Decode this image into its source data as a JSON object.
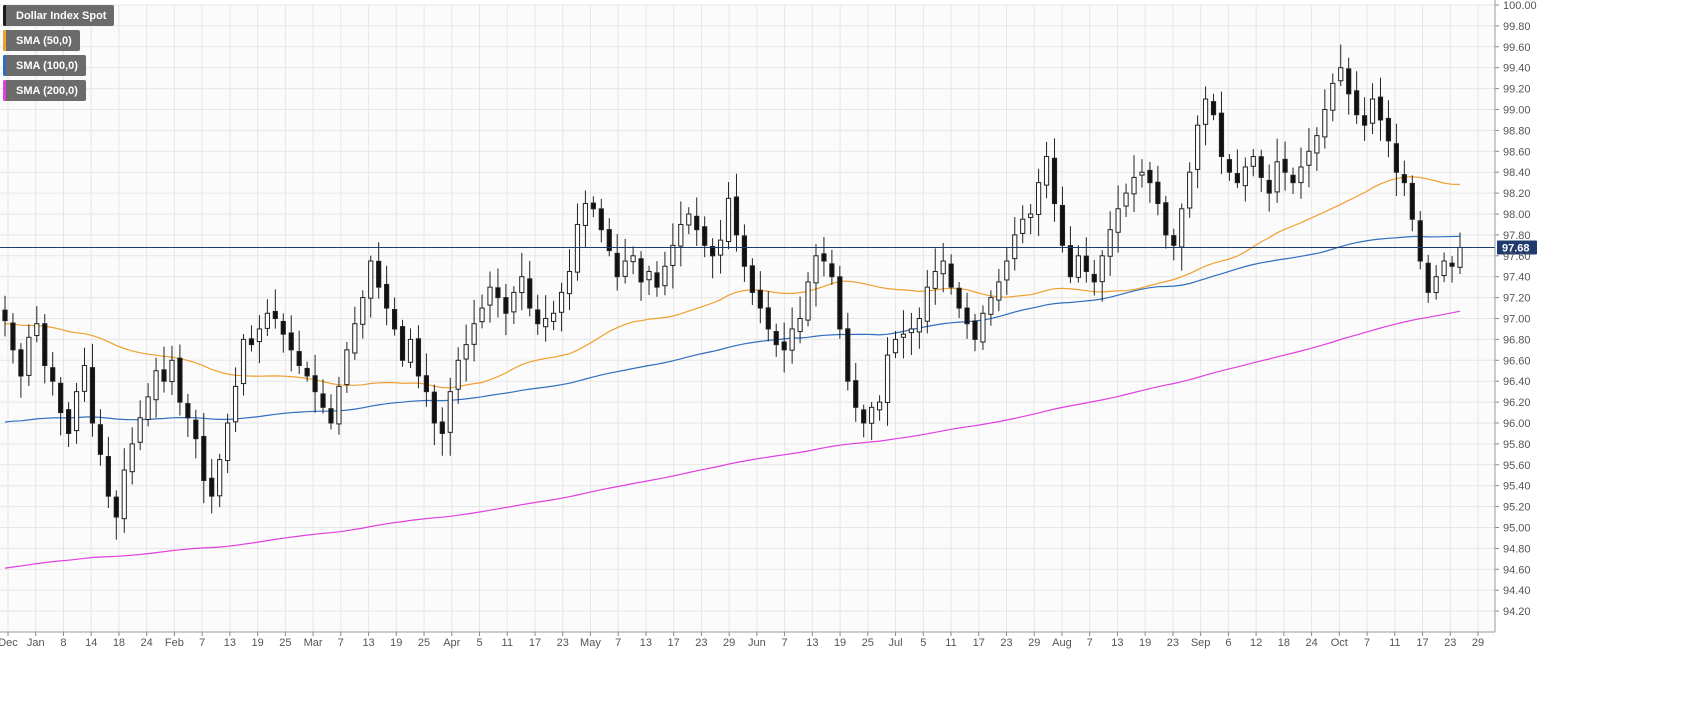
{
  "legend": {
    "items": [
      {
        "label": "Dollar Index Spot",
        "color": "#1a1a1a"
      },
      {
        "label": "SMA (50,0)",
        "color": "#f0a030"
      },
      {
        "label": "SMA (100,0)",
        "color": "#2e6fc0"
      },
      {
        "label": "SMA (200,0)",
        "color": "#e040e0"
      }
    ]
  },
  "last_price": {
    "value": 97.68,
    "label": "97.68",
    "color": "#1f3b6e"
  },
  "chart_data": {
    "type": "candlestick",
    "title": "Dollar Index Spot",
    "ylim": [
      94.0,
      100.0
    ],
    "y_ticks": [
      94.2,
      94.4,
      94.6,
      94.8,
      95.0,
      95.2,
      95.4,
      95.6,
      95.8,
      96.0,
      96.2,
      96.4,
      96.6,
      96.8,
      97.0,
      97.2,
      97.4,
      97.6,
      97.8,
      98.0,
      98.2,
      98.4,
      98.6,
      98.8,
      99.0,
      99.2,
      99.4,
      99.6,
      99.8,
      100.0
    ],
    "x_ticks": [
      "Dec",
      "Jan",
      "8",
      "14",
      "18",
      "24",
      "Feb",
      "7",
      "13",
      "19",
      "25",
      "Mar",
      "7",
      "13",
      "19",
      "25",
      "Apr",
      "5",
      "11",
      "17",
      "23",
      "May",
      "7",
      "13",
      "17",
      "23",
      "29",
      "Jun",
      "7",
      "13",
      "19",
      "25",
      "Jul",
      "5",
      "11",
      "17",
      "23",
      "29",
      "Aug",
      "7",
      "13",
      "19",
      "23",
      "Sep",
      "6",
      "12",
      "18",
      "24",
      "Oct",
      "7",
      "11",
      "17",
      "23",
      "29"
    ],
    "grid": true,
    "close_series": [
      96.98,
      96.7,
      96.45,
      96.82,
      96.95,
      96.55,
      96.4,
      96.1,
      95.9,
      96.3,
      96.55,
      96.0,
      95.7,
      95.3,
      95.1,
      95.55,
      95.8,
      96.05,
      96.25,
      96.5,
      96.4,
      96.6,
      96.2,
      96.05,
      95.85,
      95.45,
      95.3,
      95.65,
      96.0,
      96.35,
      96.8,
      96.75,
      96.9,
      97.05,
      97.0,
      96.85,
      96.7,
      96.55,
      96.45,
      96.3,
      96.15,
      96.0,
      96.35,
      96.7,
      96.95,
      97.2,
      97.55,
      97.3,
      97.1,
      96.9,
      96.6,
      96.8,
      96.45,
      96.3,
      96.0,
      95.9,
      96.3,
      96.6,
      96.75,
      96.95,
      97.1,
      97.3,
      97.2,
      97.05,
      97.25,
      97.4,
      97.1,
      96.95,
      97.0,
      97.05,
      97.25,
      97.45,
      97.9,
      98.1,
      98.05,
      97.85,
      97.65,
      97.4,
      97.55,
      97.6,
      97.35,
      97.45,
      97.3,
      97.5,
      97.7,
      97.9,
      98.0,
      97.85,
      97.7,
      97.6,
      97.75,
      98.15,
      97.8,
      97.5,
      97.25,
      97.1,
      96.9,
      96.75,
      96.7,
      96.9,
      97.0,
      97.35,
      97.6,
      97.55,
      97.4,
      96.9,
      96.4,
      96.15,
      96.0,
      96.15,
      96.2,
      96.65,
      96.8,
      96.85,
      96.9,
      97.0,
      97.3,
      97.45,
      97.55,
      97.3,
      97.1,
      96.95,
      96.8,
      97.05,
      97.2,
      97.35,
      97.55,
      97.8,
      97.95,
      98.0,
      98.3,
      98.55,
      98.1,
      97.7,
      97.4,
      97.6,
      97.45,
      97.35,
      97.6,
      97.85,
      98.05,
      98.2,
      98.35,
      98.4,
      98.3,
      98.1,
      97.8,
      97.7,
      98.05,
      98.4,
      98.85,
      99.1,
      98.95,
      98.55,
      98.4,
      98.3,
      98.45,
      98.55,
      98.35,
      98.2,
      98.5,
      98.4,
      98.3,
      98.45,
      98.6,
      98.75,
      99.0,
      99.25,
      99.4,
      99.15,
      98.95,
      98.85,
      99.1,
      98.9,
      98.7,
      98.4,
      98.3,
      97.95,
      97.55,
      97.25,
      97.4,
      97.55,
      97.5,
      97.68
    ]
  }
}
